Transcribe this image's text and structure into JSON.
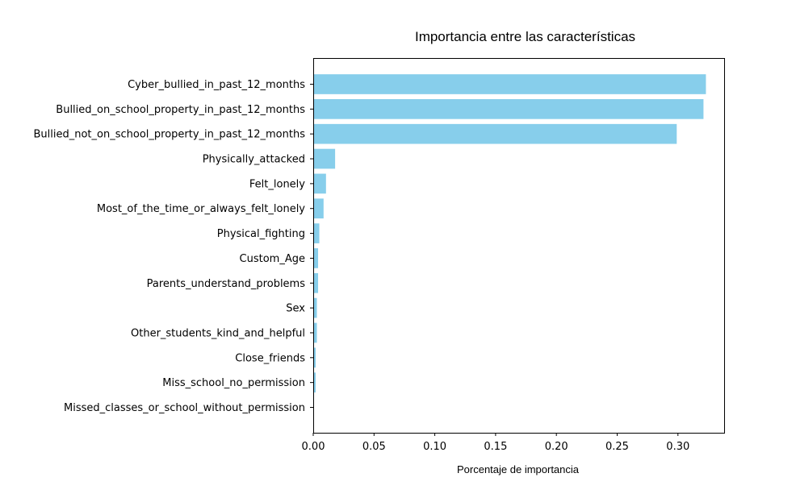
{
  "chart_data": {
    "type": "bar",
    "orientation": "horizontal",
    "title": "Importancia entre las características",
    "xlabel": "Porcentaje de importancia",
    "ylabel": "",
    "xlim": [
      0,
      0.338
    ],
    "xticks": [
      0.0,
      0.05,
      0.1,
      0.15,
      0.2,
      0.25,
      0.3
    ],
    "xtick_labels": [
      "0.00",
      "0.05",
      "0.10",
      "0.15",
      "0.20",
      "0.25",
      "0.30"
    ],
    "grid": false,
    "bar_color": "#87CEEB",
    "categories": [
      "Cyber_bullied_in_past_12_months",
      "Bullied_on_school_property_in_past_12_months",
      "Bullied_not_on_school_property_in_past_12_months",
      "Physically_attacked",
      "Felt_lonely",
      "Most_of_the_time_or_always_felt_lonely",
      "Physical_fighting",
      "Custom_Age",
      "Parents_understand_problems",
      "Sex",
      "Other_students_kind_and_helpful",
      "Close_friends",
      "Miss_school_no_permission",
      "Missed_classes_or_school_without_permission"
    ],
    "values": [
      0.323,
      0.321,
      0.299,
      0.018,
      0.0105,
      0.0085,
      0.005,
      0.004,
      0.004,
      0.003,
      0.003,
      0.002,
      0.002,
      0.0005
    ]
  }
}
